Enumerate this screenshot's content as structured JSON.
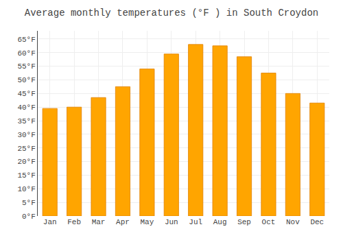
{
  "chart_data": {
    "type": "bar",
    "title": "Average monthly temperatures (°F ) in South Croydon",
    "categories": [
      "Jan",
      "Feb",
      "Mar",
      "Apr",
      "May",
      "Jun",
      "Jul",
      "Aug",
      "Sep",
      "Oct",
      "Nov",
      "Dec"
    ],
    "values": [
      39.5,
      40.0,
      43.5,
      47.5,
      54.0,
      59.5,
      63.0,
      62.5,
      58.5,
      52.5,
      45.0,
      41.5
    ],
    "color": "#FFA500",
    "ylim": [
      0,
      68
    ],
    "yticks": [
      {
        "value": 0,
        "label": "0°F"
      },
      {
        "value": 5,
        "label": "5°F"
      },
      {
        "value": 10,
        "label": "10°F"
      },
      {
        "value": 15,
        "label": "15°F"
      },
      {
        "value": 20,
        "label": "20°F"
      },
      {
        "value": 25,
        "label": "25°F"
      },
      {
        "value": 30,
        "label": "30°F"
      },
      {
        "value": 35,
        "label": "35°F"
      },
      {
        "value": 40,
        "label": "40°F"
      },
      {
        "value": 45,
        "label": "45°F"
      },
      {
        "value": 50,
        "label": "50°F"
      },
      {
        "value": 55,
        "label": "55°F"
      },
      {
        "value": 60,
        "label": "60°F"
      },
      {
        "value": 65,
        "label": "65°F"
      }
    ],
    "grid": true
  }
}
